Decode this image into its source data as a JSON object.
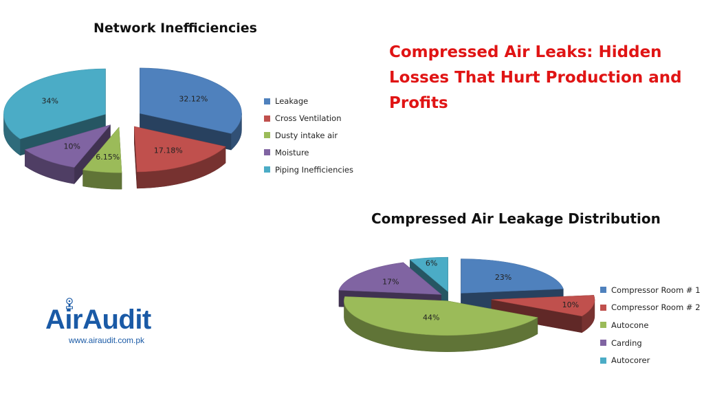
{
  "headline": "Compressed Air Leaks: Hidden Losses That Hurt Production and Profits",
  "logo": {
    "name": "AirAudit",
    "url": "www.airaudit.com.pk",
    "color": "#1a5aa6"
  },
  "chart_data": [
    {
      "type": "pie",
      "title": "Network Inefficiencies",
      "legend_position": "right",
      "categories": [
        "Leakage",
        "Cross Ventilation",
        "Dusty intake air",
        "Moisture",
        "Piping Inefficiencies"
      ],
      "values": [
        32.12,
        17.18,
        6.15,
        10,
        34
      ],
      "labels": [
        "32.12%",
        "17.18%",
        "6.15%",
        "10%",
        "34%"
      ],
      "colors": [
        "#4f81bd",
        "#c0504d",
        "#9bbb59",
        "#8064a2",
        "#4bacc6"
      ],
      "exploded": true,
      "three_d": true
    },
    {
      "type": "pie",
      "title": "Compressed Air Leakage Distribution",
      "legend_position": "right",
      "categories": [
        "Compressor Room # 1",
        "Compressor Room # 2",
        "Autocone",
        "Carding",
        "Autocorer"
      ],
      "values": [
        23,
        10,
        44,
        17,
        6
      ],
      "labels": [
        "23%",
        "10%",
        "44%",
        "17%",
        "6%"
      ],
      "colors": [
        "#4f81bd",
        "#c0504d",
        "#9bbb59",
        "#8064a2",
        "#4bacc6"
      ],
      "exploded": true,
      "three_d": true
    }
  ]
}
